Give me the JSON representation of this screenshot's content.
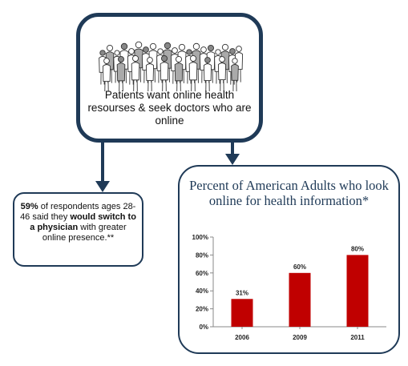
{
  "top_box": {
    "text": "Patients want online health resourses & seek doctors who are online"
  },
  "left_box": {
    "part1": "59%",
    "part2": " of respondents ages 28-46 said they ",
    "part3": "would switch to a physician",
    "part4": " with greater online presence.**"
  },
  "colors": {
    "border": "#1f3a57",
    "bar": "#c00000",
    "title": "#1f3a57"
  },
  "chart_data": {
    "type": "bar",
    "title": "Percent of American Adults who look online for health information*",
    "categories": [
      "2006",
      "2009",
      "2011"
    ],
    "values": [
      31,
      60,
      80
    ],
    "data_labels": [
      "31%",
      "60%",
      "80%"
    ],
    "y_ticks": [
      "0%",
      "20%",
      "40%",
      "60%",
      "80%",
      "100%"
    ],
    "ylim": [
      0,
      100
    ],
    "grid": false,
    "legend": "none"
  }
}
